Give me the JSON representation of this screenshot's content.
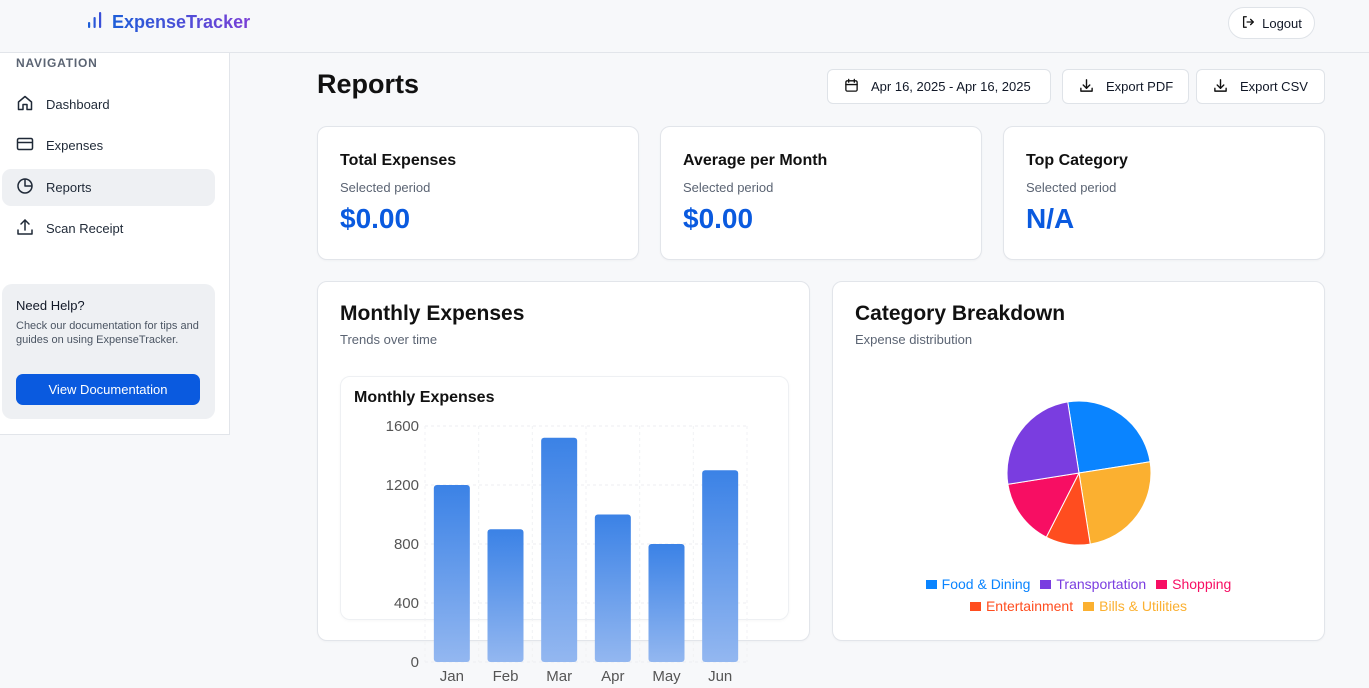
{
  "app": {
    "name": "ExpenseTracker",
    "logout_label": "Logout"
  },
  "sidebar": {
    "section_title": "NAVIGATION",
    "items": [
      {
        "label": "Dashboard",
        "icon": "home-icon"
      },
      {
        "label": "Expenses",
        "icon": "credit-card-icon"
      },
      {
        "label": "Reports",
        "icon": "pie-chart-icon",
        "active": true
      },
      {
        "label": "Scan Receipt",
        "icon": "upload-icon"
      }
    ],
    "help": {
      "title": "Need Help?",
      "text": "Check our documentation for tips and guides on using ExpenseTracker.",
      "button": "View Documentation"
    }
  },
  "main": {
    "title": "Reports",
    "date_range": "Apr 16, 2025 - Apr 16, 2025",
    "export_pdf": "Export PDF",
    "export_csv": "Export CSV"
  },
  "stats": [
    {
      "title": "Total Expenses",
      "subtitle": "Selected period",
      "value": "$0.00"
    },
    {
      "title": "Average per Month",
      "subtitle": "Selected period",
      "value": "$0.00"
    },
    {
      "title": "Top Category",
      "subtitle": "Selected period",
      "value": "N/A"
    }
  ],
  "monthly_card": {
    "title": "Monthly Expenses",
    "subtitle": "Trends over time"
  },
  "category_card": {
    "title": "Category Breakdown",
    "subtitle": "Expense distribution"
  },
  "colors": {
    "accent": "#0a5adf",
    "bar_top": "#3b82e6",
    "bar_bottom": "#93b7f0"
  },
  "chart_data": [
    {
      "type": "bar",
      "title": "Monthly Expenses",
      "categories": [
        "Jan",
        "Feb",
        "Mar",
        "Apr",
        "May",
        "Jun"
      ],
      "values": [
        1200,
        900,
        1520,
        1000,
        800,
        1300
      ],
      "yticks": [
        0,
        400,
        800,
        1200,
        1600
      ],
      "ylim": [
        0,
        1600
      ],
      "grid": true
    },
    {
      "type": "pie",
      "series": [
        {
          "name": "Food & Dining",
          "value": 25,
          "color": "#0a84ff"
        },
        {
          "name": "Bills & Utilities",
          "value": 25,
          "color": "#fbb030"
        },
        {
          "name": "Entertainment",
          "value": 10,
          "color": "#ff4d1f"
        },
        {
          "name": "Shopping",
          "value": 15,
          "color": "#f70e63"
        },
        {
          "name": "Transportation",
          "value": 25,
          "color": "#7a3de0"
        }
      ],
      "legend_order": [
        "Food & Dining",
        "Transportation",
        "Shopping",
        "Entertainment",
        "Bills & Utilities"
      ],
      "legend_position": "bottom"
    }
  ]
}
